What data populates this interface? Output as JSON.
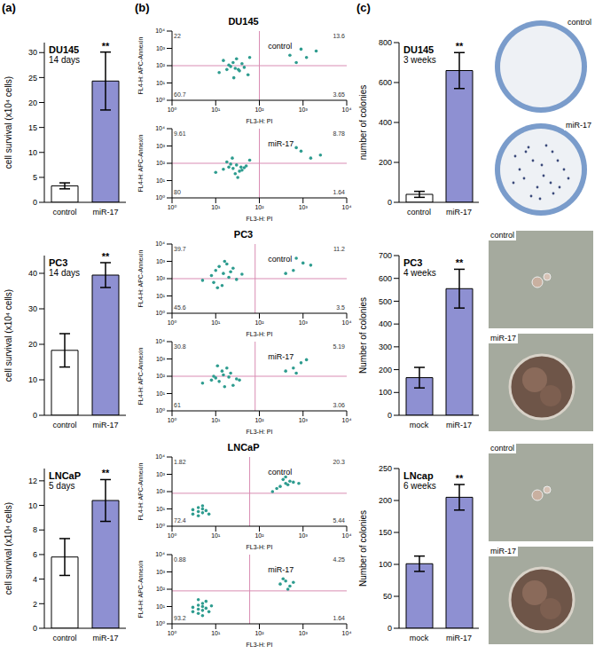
{
  "panel_labels": [
    "(a)",
    "(b)",
    "(c)"
  ],
  "chart_data": [
    {
      "type": "bar",
      "title": "DU145",
      "subtitle": "14 days",
      "y_label": "cell survival (x10⁴ cells)",
      "categories": [
        "control",
        "miR-17"
      ],
      "values": [
        3.3,
        24.3
      ],
      "errors": [
        0.6,
        5.8
      ],
      "annotations": [
        null,
        "**"
      ],
      "colors": [
        "#ffffff",
        "#8e90d2"
      ],
      "ylim": [
        0,
        32
      ],
      "yticks": [
        0,
        5,
        10,
        15,
        20,
        25,
        30
      ]
    },
    {
      "type": "bar",
      "title": "PC3",
      "subtitle": "14 days",
      "y_label": "cell survival (x10⁴ cells)",
      "categories": [
        "control",
        "miR-17"
      ],
      "values": [
        18.3,
        39.5
      ],
      "errors": [
        4.7,
        3.5
      ],
      "annotations": [
        null,
        "**"
      ],
      "colors": [
        "#ffffff",
        "#8e90d2"
      ],
      "ylim": [
        0,
        45
      ],
      "yticks": [
        0,
        10,
        20,
        30,
        40
      ]
    },
    {
      "type": "bar",
      "title": "LNCaP",
      "subtitle": "5 days",
      "y_label": "cell survival (x10⁴ cells)",
      "categories": [
        "control",
        "miR-17"
      ],
      "values": [
        5.8,
        10.4
      ],
      "errors": [
        1.5,
        1.7
      ],
      "annotations": [
        null,
        "**"
      ],
      "colors": [
        "#ffffff",
        "#8e90d2"
      ],
      "ylim": [
        0,
        13
      ],
      "yticks": [
        0,
        2,
        4,
        6,
        8,
        10,
        12
      ]
    },
    {
      "type": "scatter",
      "title": "DU145",
      "label": "control",
      "x_label": "FL3-H: PI",
      "y_label": "FL4-H: APC-Annexin",
      "log": true,
      "color": "#2e9c8f",
      "x": [
        12,
        18,
        22,
        28,
        35,
        45,
        55,
        25,
        15,
        30,
        40,
        20,
        60,
        33,
        26,
        700,
        1200,
        2000,
        900,
        500
      ],
      "y": [
        40,
        60,
        90,
        70,
        50,
        80,
        30,
        150,
        200,
        250,
        130,
        110,
        300,
        60,
        20,
        150,
        300,
        700,
        900,
        400
      ],
      "xlim": [
        1,
        10000
      ],
      "ylim": [
        1,
        10000
      ],
      "xticks": [
        {
          "value": 1,
          "label": "10⁰"
        },
        {
          "value": 10,
          "label": "10¹"
        },
        {
          "value": 100,
          "label": "10²"
        },
        {
          "value": 1000,
          "label": "10³"
        },
        {
          "value": 10000,
          "label": "10⁴"
        }
      ],
      "yticks": [
        {
          "value": 1,
          "label": "10⁰"
        },
        {
          "value": 10,
          "label": "10¹"
        },
        {
          "value": 100,
          "label": "10²"
        },
        {
          "value": 1000,
          "label": "10³"
        },
        {
          "value": 10000,
          "label": "10⁴"
        }
      ],
      "quadrant": {
        "x": 100,
        "y": 100
      },
      "quadrant_percentages": {
        "upper_left": 22,
        "upper_right": 13.6,
        "lower_left": 60.7,
        "lower_right": 3.65
      }
    },
    {
      "type": "scatter",
      "label": "miR-17",
      "x_label": "FL3-H: PI",
      "y_label": "FL4-H: APC-Annexin",
      "log": true,
      "color": "#2e9c8f",
      "x": [
        10,
        15,
        20,
        25,
        30,
        40,
        50,
        18,
        24,
        35,
        28,
        45,
        22,
        60,
        1500,
        900,
        2500,
        700,
        32,
        38
      ],
      "y": [
        30,
        45,
        60,
        50,
        80,
        40,
        70,
        120,
        200,
        35,
        25,
        55,
        90,
        150,
        200,
        500,
        300,
        800,
        15,
        60
      ],
      "xlim": [
        1,
        10000
      ],
      "ylim": [
        1,
        10000
      ],
      "xticks": [
        {
          "value": 1,
          "label": "10⁰"
        },
        {
          "value": 10,
          "label": "10¹"
        },
        {
          "value": 100,
          "label": "10²"
        },
        {
          "value": 1000,
          "label": "10³"
        },
        {
          "value": 10000,
          "label": "10⁴"
        }
      ],
      "yticks": [
        {
          "value": 1,
          "label": "10⁰"
        },
        {
          "value": 10,
          "label": "10¹"
        },
        {
          "value": 100,
          "label": "10²"
        },
        {
          "value": 1000,
          "label": "10³"
        },
        {
          "value": 10000,
          "label": "10⁴"
        }
      ],
      "quadrant": {
        "x": 100,
        "y": 100
      },
      "quadrant_percentages": {
        "upper_left": 9.61,
        "upper_right": 8.78,
        "lower_left": 80,
        "lower_right": 1.64
      }
    },
    {
      "type": "scatter",
      "title": "PC3",
      "label": "control",
      "x_label": "FL3-H: PI",
      "y_label": "FL4-H: APC-Annexin",
      "log": true,
      "color": "#2e9c8f",
      "x": [
        5,
        8,
        10,
        15,
        20,
        30,
        12,
        18,
        25,
        9,
        14,
        22,
        40,
        16,
        11,
        600,
        1000,
        400,
        1500,
        700
      ],
      "y": [
        80,
        150,
        300,
        200,
        120,
        90,
        500,
        700,
        400,
        60,
        40,
        250,
        180,
        1000,
        30,
        300,
        800,
        200,
        600,
        1500
      ],
      "xlim": [
        1,
        10000
      ],
      "ylim": [
        1,
        10000
      ],
      "xticks": [
        {
          "value": 1,
          "label": "10⁰"
        },
        {
          "value": 10,
          "label": "10¹"
        },
        {
          "value": 100,
          "label": "10²"
        },
        {
          "value": 1000,
          "label": "10³"
        },
        {
          "value": 10000,
          "label": "10⁴"
        }
      ],
      "yticks": [
        {
          "value": 1,
          "label": "10⁰"
        },
        {
          "value": 10,
          "label": "10¹"
        },
        {
          "value": 100,
          "label": "10²"
        },
        {
          "value": 1000,
          "label": "10³"
        },
        {
          "value": 10000,
          "label": "10⁴"
        }
      ],
      "quadrant": {
        "x": 80,
        "y": 100
      },
      "quadrant_percentages": {
        "upper_left": 39.7,
        "upper_right": 11.2,
        "lower_left": 45.6,
        "lower_right": 3.5
      }
    },
    {
      "type": "scatter",
      "label": "miR-17",
      "x_label": "FL3-H: PI",
      "y_label": "FL4-H: APC-Annexin",
      "log": true,
      "color": "#2e9c8f",
      "x": [
        5,
        8,
        10,
        12,
        15,
        20,
        25,
        30,
        14,
        18,
        22,
        9,
        35,
        16,
        11,
        600,
        900,
        400,
        1200,
        700
      ],
      "y": [
        40,
        60,
        80,
        50,
        120,
        90,
        30,
        70,
        200,
        300,
        150,
        100,
        60,
        25,
        400,
        300,
        600,
        200,
        900,
        150
      ],
      "xlim": [
        1,
        10000
      ],
      "ylim": [
        1,
        10000
      ],
      "xticks": [
        {
          "value": 1,
          "label": "10⁰"
        },
        {
          "value": 10,
          "label": "10¹"
        },
        {
          "value": 100,
          "label": "10²"
        },
        {
          "value": 1000,
          "label": "10³"
        },
        {
          "value": 10000,
          "label": "10⁴"
        }
      ],
      "yticks": [
        {
          "value": 1,
          "label": "10⁰"
        },
        {
          "value": 10,
          "label": "10¹"
        },
        {
          "value": 100,
          "label": "10²"
        },
        {
          "value": 1000,
          "label": "10³"
        },
        {
          "value": 10000,
          "label": "10⁴"
        }
      ],
      "quadrant": {
        "x": 80,
        "y": 100
      },
      "quadrant_percentages": {
        "upper_left": 30.8,
        "upper_right": 5.19,
        "lower_left": 61,
        "lower_right": 3.06
      }
    },
    {
      "type": "scatter",
      "title": "LNCaP",
      "label": "control",
      "x_label": "FL3-H: PI",
      "y_label": "FL4-H: APC-Annexin",
      "log": true,
      "color": "#2e9c8f",
      "x": [
        3,
        4,
        5,
        6,
        4,
        5,
        3,
        7,
        5,
        4,
        300,
        400,
        500,
        350,
        450,
        600,
        250,
        400,
        200,
        800
      ],
      "y": [
        5,
        7,
        10,
        8,
        12,
        6,
        9,
        5,
        15,
        4,
        200,
        300,
        400,
        500,
        250,
        350,
        150,
        700,
        100,
        300
      ],
      "xlim": [
        1,
        10000
      ],
      "ylim": [
        1,
        10000
      ],
      "xticks": [
        {
          "value": 1,
          "label": "10⁰"
        },
        {
          "value": 10,
          "label": "10¹"
        },
        {
          "value": 100,
          "label": "10²"
        },
        {
          "value": 1000,
          "label": "10³"
        },
        {
          "value": 10000,
          "label": "10⁴"
        }
      ],
      "yticks": [
        {
          "value": 1,
          "label": "10⁰"
        },
        {
          "value": 10,
          "label": "10¹"
        },
        {
          "value": 100,
          "label": "10²"
        },
        {
          "value": 1000,
          "label": "10³"
        },
        {
          "value": 10000,
          "label": "10⁴"
        }
      ],
      "quadrant": {
        "x": 60,
        "y": 80
      },
      "quadrant_percentages": {
        "upper_left": 1.82,
        "upper_right": 20.3,
        "lower_left": 72.4,
        "lower_right": 5.44
      }
    },
    {
      "type": "scatter",
      "label": "miR-17",
      "x_label": "FL3-H: PI",
      "y_label": "FL4-H: APC-Annexin",
      "log": true,
      "color": "#2e9c8f",
      "x": [
        3,
        4,
        5,
        6,
        4,
        5,
        3,
        7,
        5,
        4,
        6,
        8,
        5,
        4,
        300,
        400,
        500,
        350,
        600,
        450
      ],
      "y": [
        5,
        7,
        10,
        8,
        12,
        6,
        9,
        5,
        15,
        4,
        20,
        11,
        3,
        25,
        200,
        300,
        150,
        400,
        250,
        100
      ],
      "xlim": [
        1,
        10000
      ],
      "ylim": [
        1,
        10000
      ],
      "xticks": [
        {
          "value": 1,
          "label": "10⁰"
        },
        {
          "value": 10,
          "label": "10¹"
        },
        {
          "value": 100,
          "label": "10²"
        },
        {
          "value": 1000,
          "label": "10³"
        },
        {
          "value": 10000,
          "label": "10⁴"
        }
      ],
      "yticks": [
        {
          "value": 1,
          "label": "10⁰"
        },
        {
          "value": 10,
          "label": "10¹"
        },
        {
          "value": 100,
          "label": "10²"
        },
        {
          "value": 1000,
          "label": "10³"
        },
        {
          "value": 10000,
          "label": "10⁴"
        }
      ],
      "quadrant": {
        "x": 60,
        "y": 80
      },
      "quadrant_percentages": {
        "upper_left": 0.88,
        "upper_right": 4.25,
        "lower_left": 93.2,
        "lower_right": 1.64
      }
    },
    {
      "type": "bar",
      "title": "DU145",
      "subtitle": "3 weeks",
      "y_label": "number of colonies",
      "categories": [
        "control",
        "miR-17"
      ],
      "values": [
        40,
        660
      ],
      "errors": [
        15,
        90
      ],
      "annotations": [
        null,
        "**"
      ],
      "colors": [
        "#ffffff",
        "#8e90d2"
      ],
      "ylim": [
        0,
        800
      ],
      "yticks": [
        0,
        200,
        400,
        600,
        800
      ]
    },
    {
      "type": "bar",
      "title": "PC3",
      "subtitle": "4 weeks",
      "y_label": "Number of colonies",
      "categories": [
        "mock",
        "miR-17"
      ],
      "values": [
        165,
        555
      ],
      "errors": [
        45,
        85
      ],
      "annotations": [
        null,
        "**"
      ],
      "colors": [
        "#8e90d2",
        "#8e90d2"
      ],
      "ylim": [
        0,
        700
      ],
      "yticks": [
        0,
        100,
        200,
        300,
        400,
        500,
        600,
        700
      ]
    },
    {
      "type": "bar",
      "title": "LNcap",
      "subtitle": "6 weeks",
      "y_label": "Number of colonies",
      "categories": [
        "mock",
        "miR-17"
      ],
      "values": [
        101,
        205
      ],
      "errors": [
        12,
        20
      ],
      "annotations": [
        null,
        "**"
      ],
      "colors": [
        "#8e90d2",
        "#8e90d2"
      ],
      "ylim": [
        0,
        250
      ],
      "yticks": [
        0,
        50,
        100,
        150,
        200,
        250
      ]
    }
  ],
  "photos": [
    {
      "labels": [
        "control",
        "miR-17"
      ]
    },
    {
      "labels": [
        "control",
        "miR-17"
      ]
    },
    {
      "labels": [
        "control",
        "miR-17"
      ]
    }
  ]
}
